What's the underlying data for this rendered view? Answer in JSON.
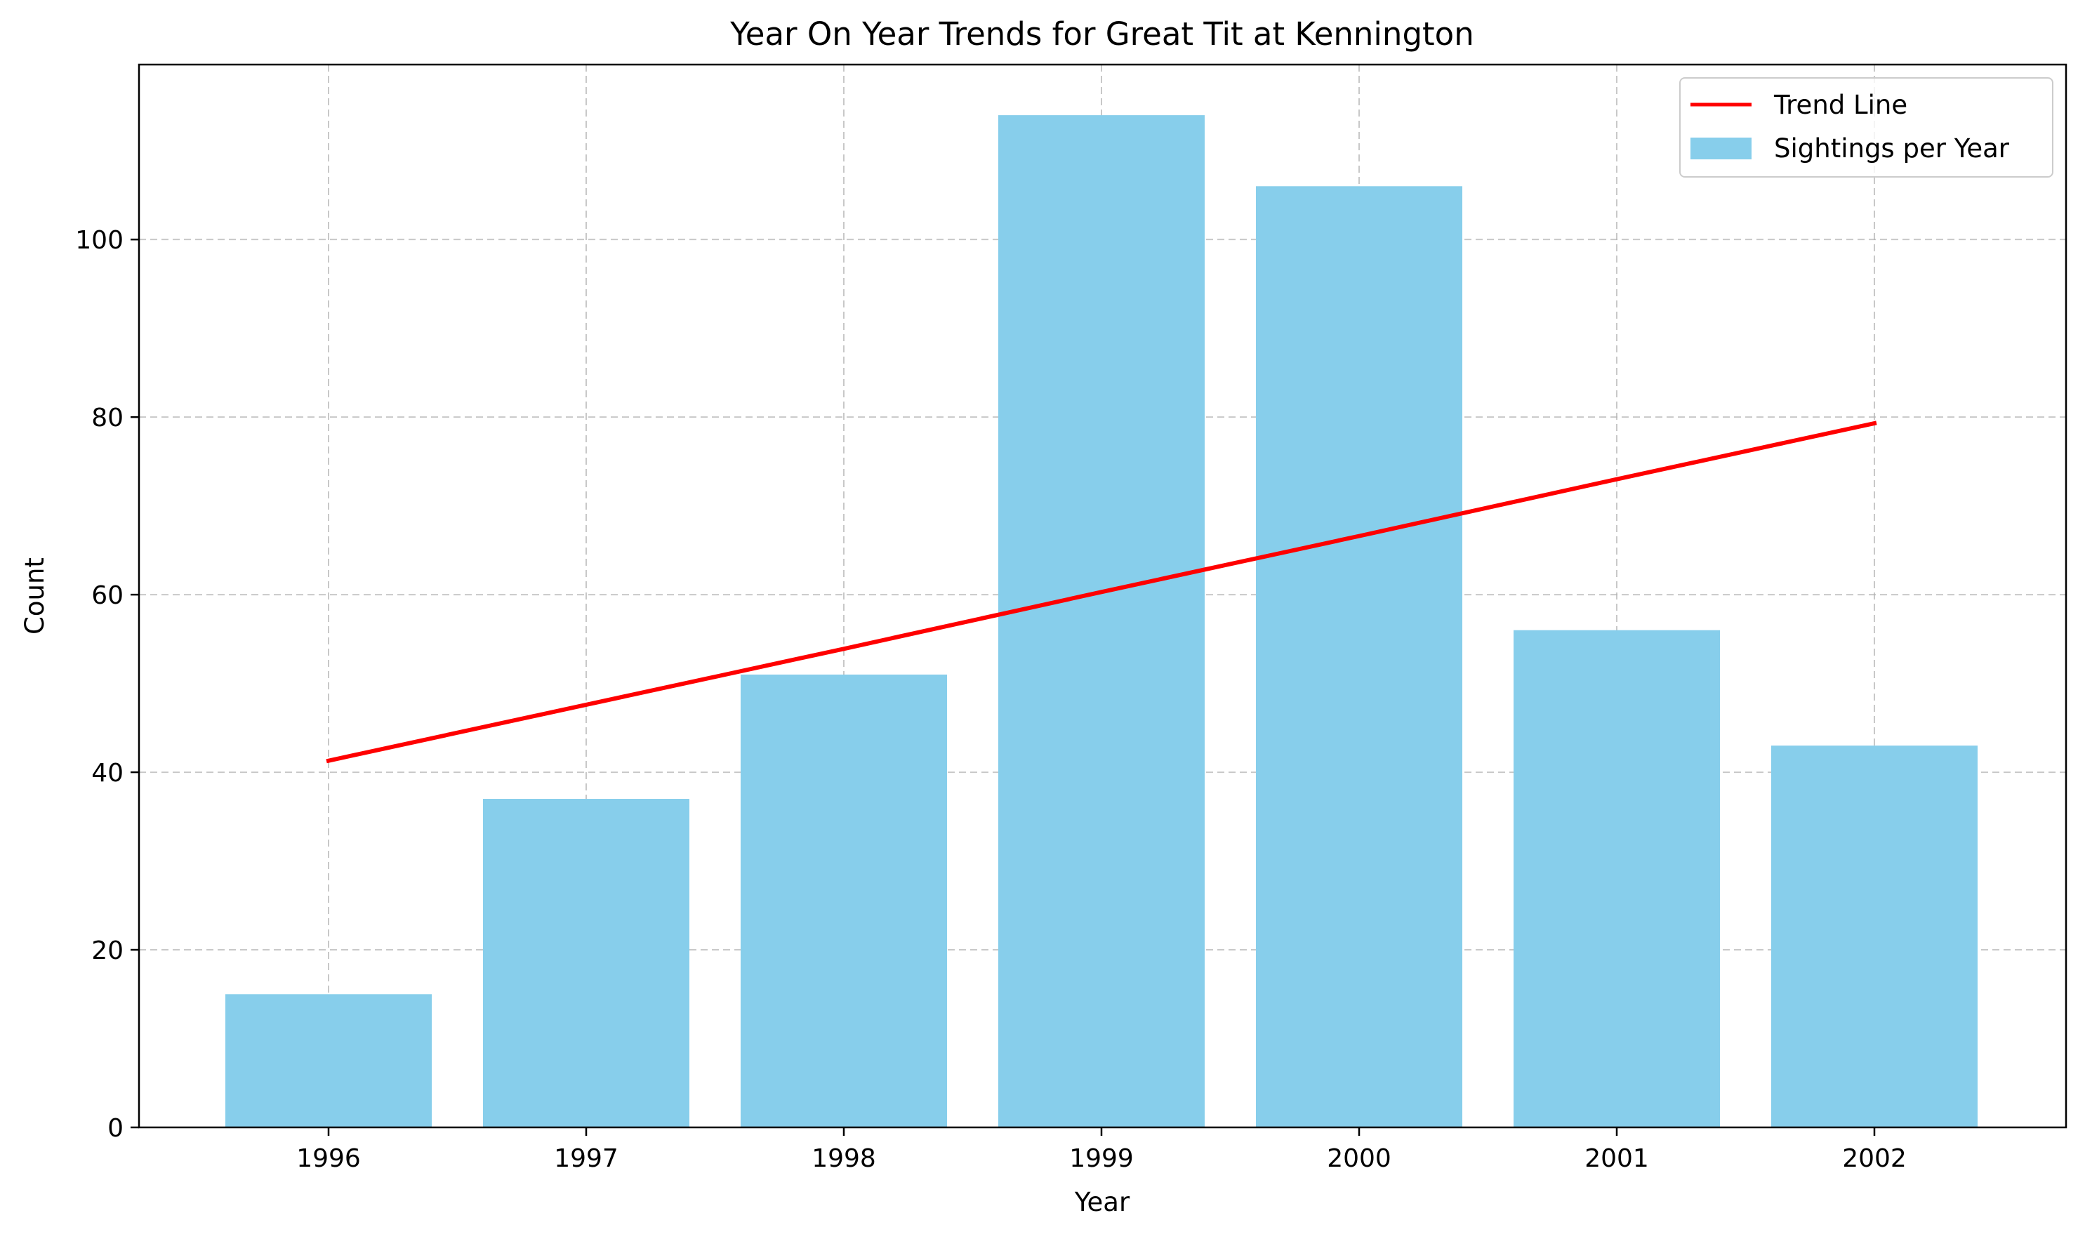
{
  "chart_data": {
    "type": "bar",
    "title": "Year On Year Trends for Great Tit at Kennington",
    "xlabel": "Year",
    "ylabel": "Count",
    "categories": [
      "1996",
      "1997",
      "1998",
      "1999",
      "2000",
      "2001",
      "2002"
    ],
    "series": [
      {
        "name": "Sightings per Year",
        "type": "bar",
        "color": "#87CEEB",
        "values": [
          15,
          37,
          51,
          114,
          106,
          56,
          43
        ]
      },
      {
        "name": "Trend Line",
        "type": "line",
        "color": "#FF0000",
        "values": [
          41.3,
          47.6,
          53.9,
          60.3,
          66.6,
          73.0,
          79.3
        ]
      }
    ],
    "ylim": [
      0,
      119.7
    ],
    "yticks": [
      0,
      20,
      40,
      60,
      80,
      100
    ],
    "grid": true,
    "legend": "top-right"
  }
}
